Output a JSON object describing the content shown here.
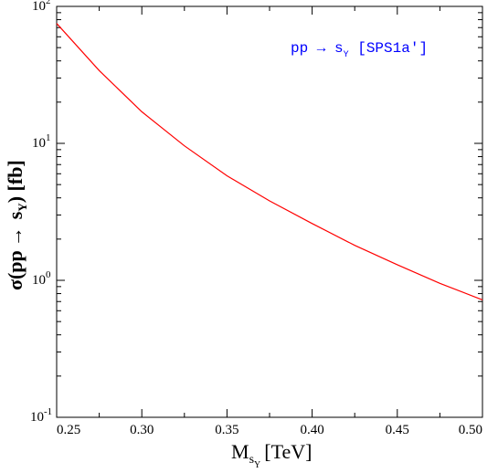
{
  "chart_data": {
    "type": "line",
    "xlabel": {
      "main": "M",
      "sub": "s",
      "subsub": "Y",
      "rest": "[TeV]"
    },
    "ylabel": {
      "pre": "σ(pp",
      "arrow": "→",
      "post1": "s",
      "sub": "Y",
      "post2": ") [fb]"
    },
    "xlim": [
      0.25,
      0.5
    ],
    "ylim": [
      0.1,
      100
    ],
    "yscale": "log",
    "x_ticks": [
      "0.25",
      "0.30",
      "0.35",
      "0.40",
      "0.45",
      "0.50"
    ],
    "y_ticks": [
      {
        "base": "10",
        "exp": "-1",
        "value": 0.1
      },
      {
        "base": "10",
        "exp": "0",
        "value": 1
      },
      {
        "base": "10",
        "exp": "1",
        "value": 10
      },
      {
        "base": "10",
        "exp": "2",
        "value": 100
      }
    ],
    "grid": false,
    "legend": {
      "pre": "pp → s",
      "sub": "Y",
      "post": " [SPS1a′]",
      "color": "#0000ff",
      "position": "top-right"
    },
    "series": [
      {
        "color": "#ff0000",
        "x": [
          0.25,
          0.275,
          0.3,
          0.325,
          0.35,
          0.375,
          0.4,
          0.425,
          0.45,
          0.475,
          0.5
        ],
        "y": [
          75,
          34,
          17,
          9.6,
          5.8,
          3.8,
          2.6,
          1.8,
          1.3,
          0.95,
          0.72
        ]
      }
    ]
  }
}
